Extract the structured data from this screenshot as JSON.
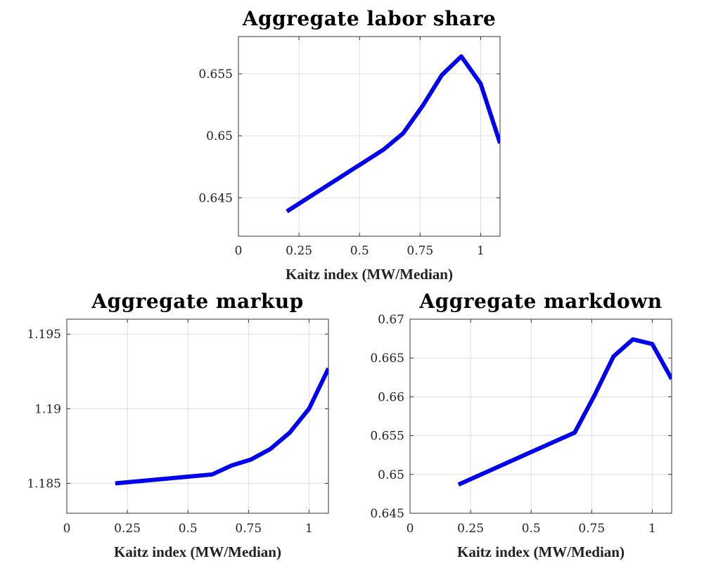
{
  "chart_data": [
    {
      "type": "line",
      "title": "Aggregate labor share",
      "xlabel": "Kaitz index (MW/Median)",
      "ylabel": "",
      "xlim": [
        0,
        1.08
      ],
      "ylim": [
        0.6419,
        0.658
      ],
      "xticks": [
        0,
        0.25,
        0.5,
        0.75,
        1
      ],
      "xtick_labels": [
        "0",
        "0.25",
        "0.5",
        "0.75",
        "1"
      ],
      "yticks": [
        0.645,
        0.65,
        0.655
      ],
      "ytick_labels": [
        "0.645",
        "0.65",
        "0.655"
      ],
      "grid": true,
      "color": "#0000ee",
      "series": [
        {
          "x": [
            0.2,
            0.6,
            0.68,
            0.76,
            0.84,
            0.92,
            1.0,
            1.08
          ],
          "values": [
            0.6439,
            0.6489,
            0.6502,
            0.6524,
            0.6549,
            0.6564,
            0.6542,
            0.6494
          ]
        }
      ]
    },
    {
      "type": "line",
      "title": "Aggregate markup",
      "xlabel": "Kaitz index (MW/Median)",
      "ylabel": "",
      "xlim": [
        0,
        1.08
      ],
      "ylim": [
        1.183,
        1.196
      ],
      "xticks": [
        0,
        0.25,
        0.5,
        0.75,
        1
      ],
      "xtick_labels": [
        "0",
        "0.25",
        "0.5",
        "0.75",
        "1"
      ],
      "yticks": [
        1.185,
        1.19,
        1.195
      ],
      "ytick_labels": [
        "1.185",
        "1.19",
        "1.195"
      ],
      "grid": true,
      "color": "#0000ee",
      "series": [
        {
          "x": [
            0.2,
            0.6,
            0.68,
            0.76,
            0.84,
            0.92,
            1.0,
            1.08
          ],
          "values": [
            1.185,
            1.1856,
            1.1862,
            1.1866,
            1.1873,
            1.1884,
            1.19,
            1.1927
          ]
        }
      ]
    },
    {
      "type": "line",
      "title": "Aggregate markdown",
      "xlabel": "Kaitz index (MW/Median)",
      "ylabel": "",
      "xlim": [
        0,
        1.08
      ],
      "ylim": [
        0.645,
        0.67
      ],
      "xticks": [
        0,
        0.25,
        0.5,
        0.75,
        1
      ],
      "xtick_labels": [
        "0",
        "0.25",
        "0.5",
        "0.75",
        "1"
      ],
      "yticks": [
        0.645,
        0.65,
        0.655,
        0.66,
        0.665,
        0.67
      ],
      "ytick_labels": [
        "0.645",
        "0.65",
        "0.655",
        "0.66",
        "0.665",
        "0.67"
      ],
      "grid": true,
      "color": "#0000ee",
      "series": [
        {
          "x": [
            0.2,
            0.68,
            0.76,
            0.84,
            0.92,
            1.0,
            1.08
          ],
          "values": [
            0.6487,
            0.6554,
            0.6601,
            0.6652,
            0.6674,
            0.6668,
            0.6623
          ]
        }
      ]
    }
  ]
}
